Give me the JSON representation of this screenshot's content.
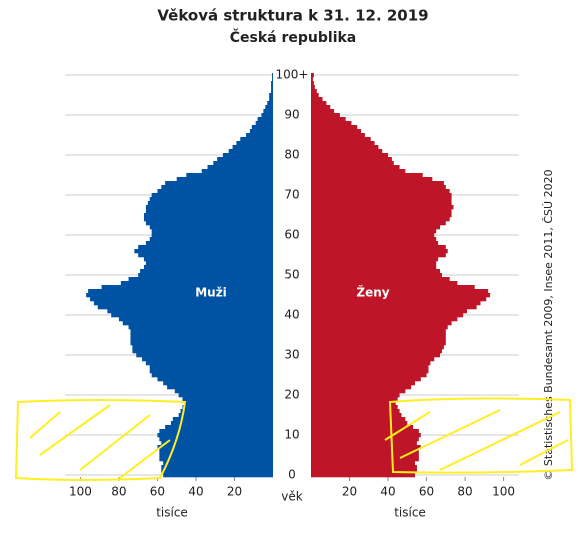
{
  "chart_data": {
    "type": "pyramid",
    "title": "Věková struktura k 31. 12. 2019",
    "subtitle": "Česká republika",
    "y_label": "věk",
    "x_label": "tisíce",
    "source": "© Statistisches Bundesamt 2009, Insee 2011, ČSÚ 2020",
    "grid": true,
    "ylim": [
      0,
      101
    ],
    "yticks": [
      0,
      10,
      20,
      30,
      40,
      50,
      60,
      70,
      80,
      90,
      {
        "value": 100,
        "label": "100+"
      }
    ],
    "xlim": [
      0,
      108
    ],
    "xticks": [
      20,
      40,
      60,
      80,
      100
    ],
    "y": [
      0,
      1,
      2,
      3,
      4,
      5,
      6,
      7,
      8,
      9,
      10,
      11,
      12,
      13,
      14,
      15,
      16,
      17,
      18,
      19,
      20,
      21,
      22,
      23,
      24,
      25,
      26,
      27,
      28,
      29,
      30,
      31,
      32,
      33,
      34,
      35,
      36,
      37,
      38,
      39,
      40,
      41,
      42,
      43,
      44,
      45,
      46,
      47,
      48,
      49,
      50,
      51,
      52,
      53,
      54,
      55,
      56,
      57,
      58,
      59,
      60,
      61,
      62,
      63,
      64,
      65,
      66,
      67,
      68,
      69,
      70,
      71,
      72,
      73,
      74,
      75,
      76,
      77,
      78,
      79,
      80,
      81,
      82,
      83,
      84,
      85,
      86,
      87,
      88,
      89,
      90,
      91,
      92,
      93,
      94,
      95,
      96,
      97,
      98,
      99,
      100
    ],
    "series": [
      {
        "name": "Muži",
        "color": "#0052a3",
        "side": "left",
        "values": [
          57,
          58,
          58,
          57,
          59,
          59,
          59,
          60,
          58,
          59,
          60,
          59,
          56,
          53,
          52,
          49,
          48,
          47,
          46,
          47,
          49,
          51,
          55,
          57,
          60,
          63,
          64,
          64,
          66,
          68,
          71,
          73,
          73,
          74,
          74,
          74,
          74,
          75,
          78,
          80,
          84,
          86,
          91,
          93,
          95,
          97,
          96,
          89,
          79,
          75,
          70,
          69,
          67,
          66,
          67,
          70,
          72,
          70,
          66,
          64,
          63,
          63,
          64,
          66,
          67,
          67,
          66,
          66,
          65,
          64,
          63,
          60,
          58,
          56,
          50,
          45,
          37,
          34,
          31,
          29,
          26,
          23,
          21,
          19,
          17,
          14,
          12,
          11,
          9,
          8,
          6,
          5,
          4,
          3,
          2,
          2,
          1,
          1,
          1,
          0.5,
          0.5
        ]
      },
      {
        "name": "Ženy",
        "color": "#be1628",
        "side": "right",
        "values": [
          54,
          55,
          55,
          54,
          56,
          56,
          56,
          57,
          55,
          56,
          57,
          56,
          53,
          50,
          49,
          47,
          46,
          45,
          44,
          45,
          46,
          49,
          52,
          54,
          57,
          60,
          61,
          61,
          62,
          64,
          67,
          68,
          69,
          70,
          70,
          70,
          70,
          71,
          73,
          76,
          79,
          81,
          86,
          88,
          91,
          93,
          92,
          85,
          76,
          72,
          68,
          67,
          65,
          65,
          66,
          70,
          71,
          70,
          66,
          65,
          64,
          65,
          67,
          70,
          72,
          73,
          73,
          74,
          73,
          73,
          73,
          72,
          70,
          69,
          63,
          58,
          49,
          46,
          43,
          42,
          40,
          37,
          35,
          33,
          31,
          28,
          26,
          24,
          21,
          18,
          15,
          12,
          10,
          8,
          6,
          4,
          3,
          2,
          1.5,
          1,
          1.5
        ]
      }
    ]
  }
}
